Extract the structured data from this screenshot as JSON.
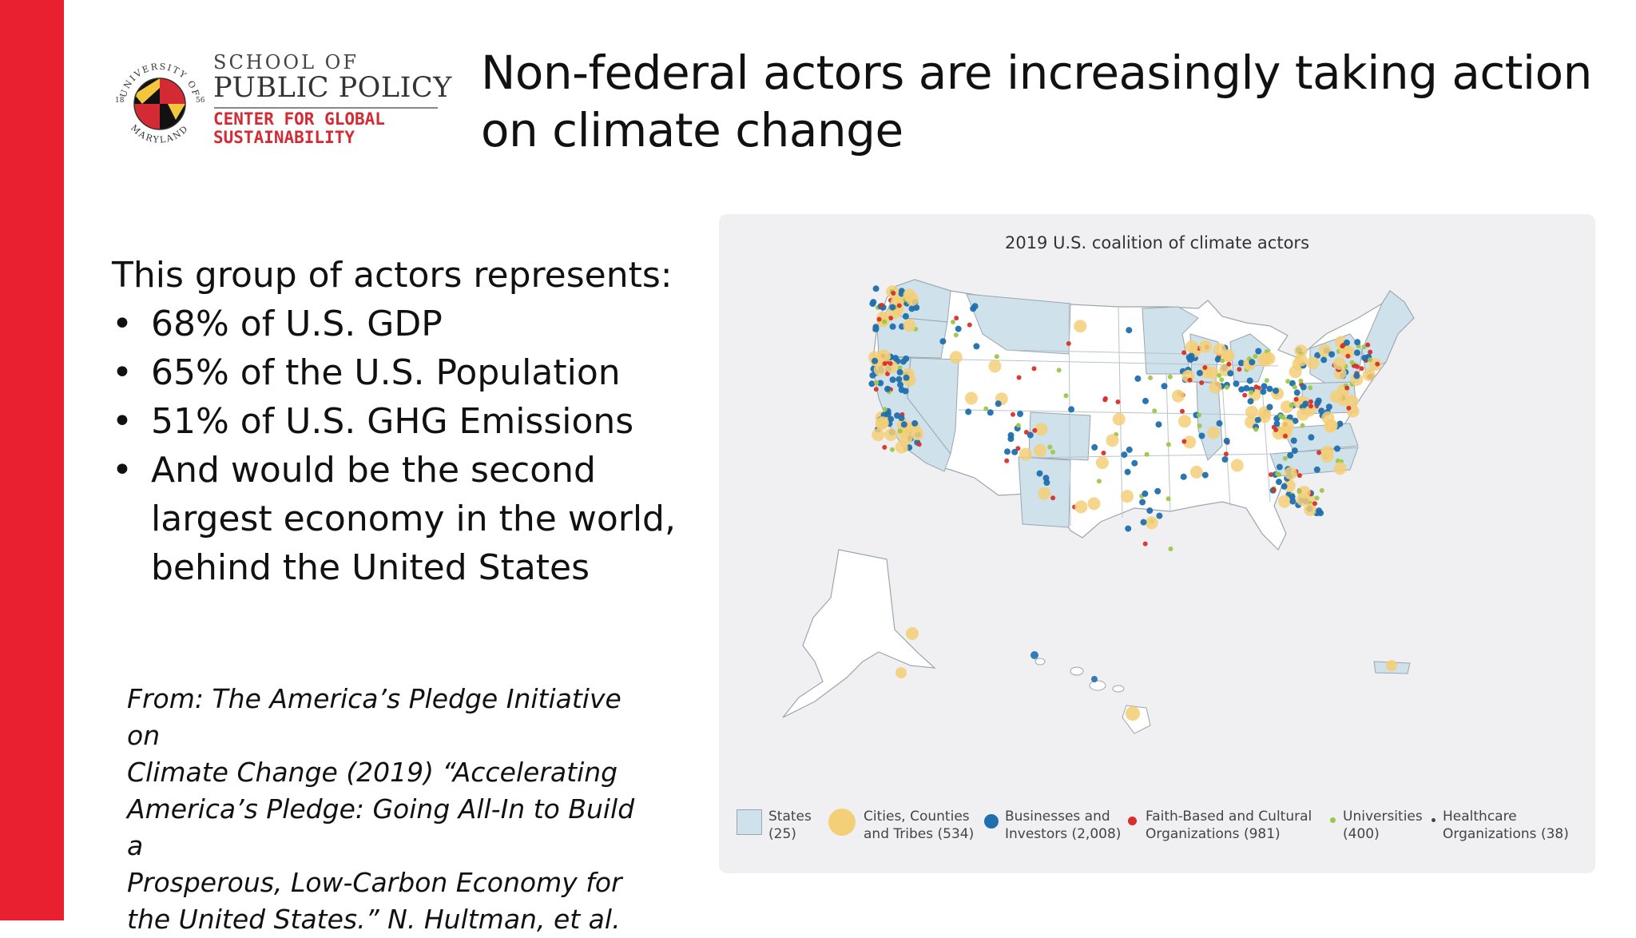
{
  "logo": {
    "seal_text_top": "UNIVERSITY OF",
    "seal_text_bottom": "MARYLAND",
    "seal_year_left": "18",
    "seal_year_right": "56",
    "school_line": "SCHOOL OF",
    "policy_line": "PUBLIC POLICY",
    "center_line1": "CENTER FOR GLOBAL",
    "center_line2": "SUSTAINABILITY"
  },
  "title": {
    "line1": "Non-federal actors are increasingly taking action",
    "line2": "on climate change"
  },
  "body": {
    "intro": "This group of actors represents:",
    "bullets": [
      "68% of U.S. GDP",
      "65% of the U.S. Population",
      "51% of U.S. GHG Emissions",
      "And would be the second largest economy in the world, behind the United States"
    ]
  },
  "citation": {
    "lines": [
      "From: The America’s Pledge Initiative on",
      "Climate Change (2019) “Accelerating",
      "America’s Pledge: Going All-In to Build a",
      "Prosperous, Low-Carbon Economy for",
      "the United States.” N. Hultman, et al."
    ]
  },
  "map": {
    "title": "2019 U.S. coalition of climate actors",
    "legend": [
      {
        "line1": "States",
        "line2": "(25)",
        "color": "#cfe1ea"
      },
      {
        "line1": "Cities, Counties",
        "line2": "and Tribes (534)",
        "color": "#f3cf78"
      },
      {
        "line1": "Businesses and",
        "line2": "Investors (2,008)",
        "color": "#1f6fae"
      },
      {
        "line1": "Faith-Based and Cultural",
        "line2": "Organizations (981)",
        "color": "#d7302a"
      },
      {
        "line1": "Universities",
        "line2": "(400)",
        "color": "#9cc74a"
      },
      {
        "line1": "Healthcare",
        "line2": "Organizations (38)",
        "color": "#444444"
      }
    ]
  }
}
